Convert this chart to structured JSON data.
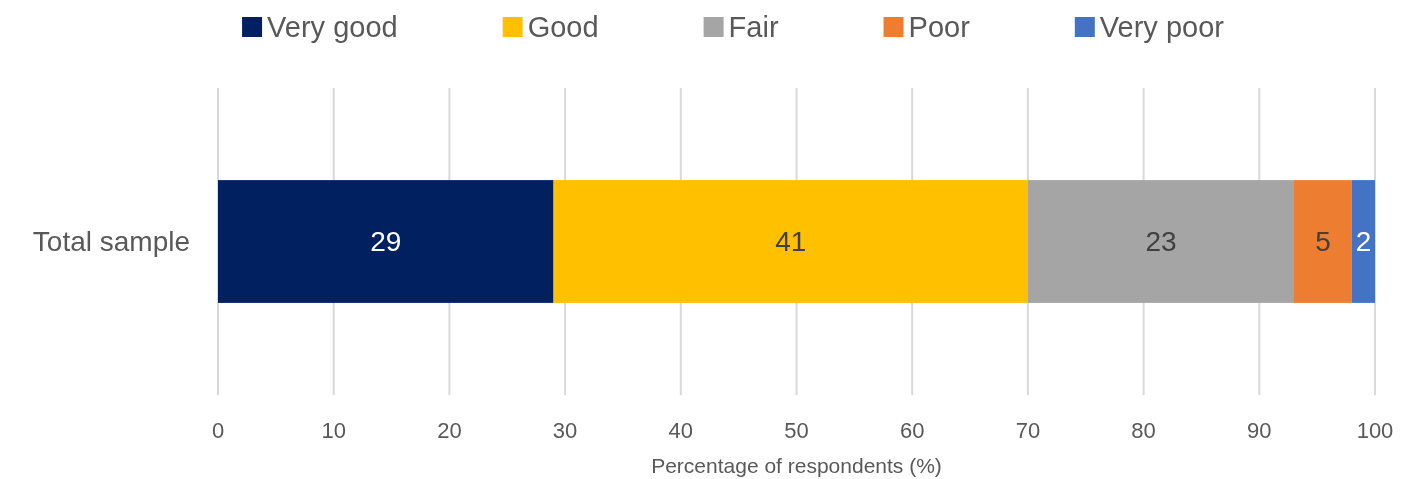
{
  "chart_data": {
    "type": "bar",
    "orientation": "horizontal",
    "stacked": true,
    "categories": [
      "Total sample"
    ],
    "series": [
      {
        "name": "Very good",
        "color": "#002060",
        "values": [
          29
        ]
      },
      {
        "name": "Good",
        "color": "#ffc000",
        "values": [
          41
        ]
      },
      {
        "name": "Fair",
        "color": "#a5a5a5",
        "values": [
          23
        ]
      },
      {
        "name": "Poor",
        "color": "#ed7d31",
        "values": [
          5
        ]
      },
      {
        "name": "Very poor",
        "color": "#4472c4",
        "values": [
          2
        ]
      }
    ],
    "xlabel": "Percentage of respondents (%)",
    "xlim": [
      0,
      100
    ],
    "xticks": [
      0,
      10,
      20,
      30,
      40,
      50,
      60,
      70,
      80,
      90,
      100
    ],
    "grid": "x",
    "legend": "top",
    "data_labels": true
  }
}
